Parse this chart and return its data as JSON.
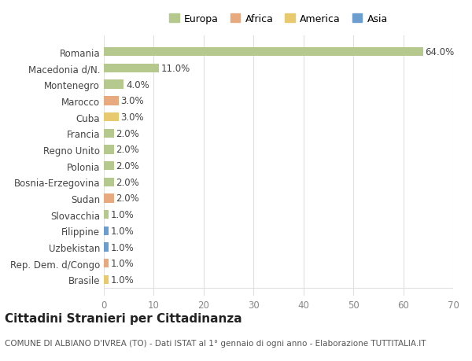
{
  "title": "Cittadini Stranieri per Cittadinanza",
  "subtitle": "COMUNE DI ALBIANO D'IVREA (TO) - Dati ISTAT al 1° gennaio di ogni anno - Elaborazione TUTTITALIA.IT",
  "categories": [
    "Romania",
    "Macedonia d/N.",
    "Montenegro",
    "Marocco",
    "Cuba",
    "Francia",
    "Regno Unito",
    "Polonia",
    "Bosnia-Erzegovina",
    "Sudan",
    "Slovacchia",
    "Filippine",
    "Uzbekistan",
    "Rep. Dem. d/Congo",
    "Brasile"
  ],
  "values": [
    64.0,
    11.0,
    4.0,
    3.0,
    3.0,
    2.0,
    2.0,
    2.0,
    2.0,
    2.0,
    1.0,
    1.0,
    1.0,
    1.0,
    1.0
  ],
  "bar_colors": [
    "#b5c98e",
    "#b5c98e",
    "#b5c98e",
    "#e8a97e",
    "#e8c96e",
    "#b5c98e",
    "#b5c98e",
    "#b5c98e",
    "#b5c98e",
    "#e8a97e",
    "#b5c98e",
    "#6b9ecf",
    "#6b9ecf",
    "#e8a97e",
    "#e8c96e"
  ],
  "legend_labels": [
    "Europa",
    "Africa",
    "America",
    "Asia"
  ],
  "legend_colors": [
    "#b5c98e",
    "#e8a97e",
    "#e8c96e",
    "#6b9ecf"
  ],
  "xlim": [
    0,
    70
  ],
  "xticks": [
    0,
    10,
    20,
    30,
    40,
    50,
    60,
    70
  ],
  "background_color": "#ffffff",
  "grid_color": "#e0e0e0",
  "label_fontsize": 8.5,
  "title_fontsize": 11,
  "subtitle_fontsize": 7.5,
  "bar_height": 0.55
}
